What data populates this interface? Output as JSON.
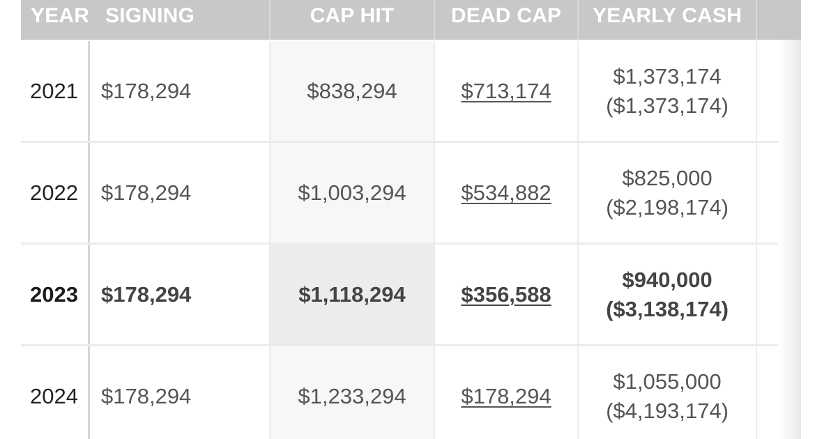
{
  "header": {
    "year": "YEAR",
    "signing": "SIGNING",
    "cap_hit": "CAP HIT",
    "dead_cap": "DEAD CAP",
    "yearly_cash": "YEARLY CASH"
  },
  "rows": [
    {
      "year": "2021",
      "signing": "$178,294",
      "cap_hit": "$838,294",
      "dead_cap": "$713,174",
      "yearly_cash": "$1,373,174",
      "cumulative_cash": "($1,373,174)",
      "highlighted": false
    },
    {
      "year": "2022",
      "signing": "$178,294",
      "cap_hit": "$1,003,294",
      "dead_cap": "$534,882",
      "yearly_cash": "$825,000",
      "cumulative_cash": "($2,198,174)",
      "highlighted": false
    },
    {
      "year": "2023",
      "signing": "$178,294",
      "cap_hit": "$1,118,294",
      "dead_cap": "$356,588",
      "yearly_cash": "$940,000",
      "cumulative_cash": "($3,138,174)",
      "highlighted": true
    },
    {
      "year": "2024",
      "signing": "$178,294",
      "cap_hit": "$1,233,294",
      "dead_cap": "$178,294",
      "yearly_cash": "$1,055,000",
      "cumulative_cash": "($4,193,174)",
      "highlighted": false
    }
  ],
  "colors": {
    "header_bg": "#c8c8c8",
    "header_text": "#ffffff",
    "cell_text": "#555555",
    "cap_hit_bg": "#f7f7f7",
    "cap_hit_current_bg": "#ececec"
  }
}
